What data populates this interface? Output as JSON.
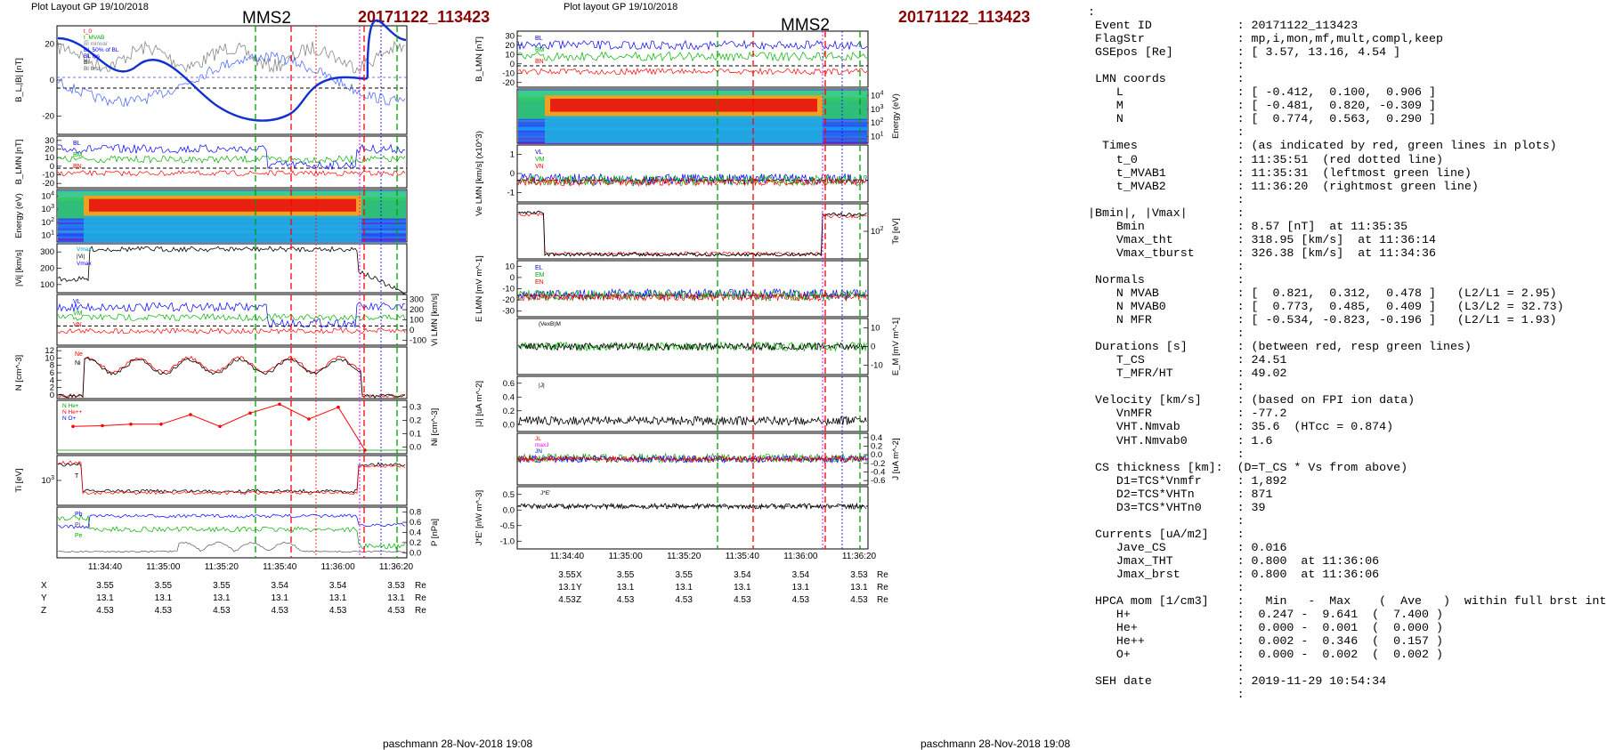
{
  "left_panel": {
    "header": "Plot Layout GP 19/10/2018",
    "spacecraft": "MMS2",
    "event": "20171122_113423",
    "footer": "paschmann 28-Nov-2018 19:08",
    "time_ticks": [
      "11:34:40",
      "11:35:00",
      "11:35:20",
      "11:35:40",
      "11:36:00",
      "11:36:20"
    ],
    "position": {
      "rows": [
        "X",
        "Y",
        "Z"
      ],
      "unit": "Re",
      "values": [
        [
          "3.55",
          "3.55",
          "3.55",
          "3.54",
          "3.54",
          "3.53"
        ],
        [
          "13.1",
          "13.1",
          "13.1",
          "13.1",
          "13.1",
          "13.1"
        ],
        [
          "4.53",
          "4.53",
          "4.53",
          "4.53",
          "4.53",
          "4.53"
        ]
      ]
    }
  },
  "right_panel": {
    "header": "Plot layout GP 19/10/2018",
    "spacecraft": "MMS2",
    "event": "20171122_113423",
    "footer": "paschmann 28-Nov-2018 19:08",
    "time_ticks": [
      "11:34:40",
      "11:35:00",
      "11:35:20",
      "11:35:40",
      "11:36:00",
      "11:36:20"
    ],
    "position": {
      "rows": [
        "X",
        "Y",
        "Z"
      ],
      "unit": "Re",
      "values": [
        [
          "3.55",
          "3.55",
          "3.55",
          "3.54",
          "3.54",
          "3.53"
        ],
        [
          "13.1",
          "13.1",
          "13.1",
          "13.1",
          "13.1",
          "13.1"
        ],
        [
          "4.53",
          "4.53",
          "4.53",
          "4.53",
          "4.53",
          "4.53"
        ]
      ]
    }
  },
  "chart_data": [
    {
      "type": "line",
      "panel": "left",
      "ylabel": "B_L,|B| [nT]",
      "yticks": [
        "20",
        "0",
        "-20"
      ],
      "legend": [
        "t_0",
        "t_MVAB",
        "Bl minvar",
        "BL 50% of BL",
        "BL fps",
        "Bl",
        "Bl brst"
      ]
    },
    {
      "type": "line",
      "panel": "left",
      "ylabel": "B_LMN [nT]",
      "yticks": [
        "30",
        "20",
        "10",
        "0",
        "-10",
        "-20"
      ],
      "series": [
        {
          "name": "BL"
        },
        {
          "name": "BM"
        },
        {
          "name": "BN"
        }
      ]
    },
    {
      "type": "heatmap",
      "panel": "left",
      "ylabel": "Energy (eV)",
      "yticks": [
        "10^4",
        "10^3",
        "10^2",
        "10^1"
      ]
    },
    {
      "type": "line",
      "panel": "left",
      "ylabel": "|Vi| [km/s]",
      "yticks": [
        "300",
        "200",
        "100"
      ],
      "legend": [
        "Vmax",
        "|Vi|",
        "Vmax"
      ]
    },
    {
      "type": "line",
      "panel": "left",
      "ylabel": "Vi LMN [km/s]",
      "yticks": [
        "300",
        "200",
        "100",
        "0",
        "-100"
      ],
      "series": [
        {
          "name": "VL"
        },
        {
          "name": "VM"
        },
        {
          "name": "VN"
        }
      ]
    },
    {
      "type": "line",
      "panel": "left",
      "ylabel": "N [cm^-3]",
      "yticks": [
        "12",
        "10",
        "8",
        "6",
        "4",
        "2",
        "0"
      ],
      "series": [
        {
          "name": "Ne"
        },
        {
          "name": "Ni"
        }
      ]
    },
    {
      "type": "line",
      "panel": "left",
      "ylabel": "Ni [cm^-3]",
      "yticks": [
        "0.3",
        "0.2",
        "0.1",
        "0.0"
      ],
      "series": [
        {
          "name": "N He+"
        },
        {
          "name": "N He++",
          "values": [
            0.16,
            0.165,
            0.175,
            0.175,
            0.24,
            0.16,
            0.25,
            0.31,
            0.21,
            0.29,
            0.0
          ]
        },
        {
          "name": "N O+"
        }
      ]
    },
    {
      "type": "line",
      "panel": "left",
      "ylabel": "Ti [eV]",
      "yticks": [
        "10^3"
      ],
      "legend": [
        "Te",
        "Ti"
      ]
    },
    {
      "type": "line",
      "panel": "left",
      "ylabel": "P [nPa]",
      "yticks": [
        "0.8",
        "0.6",
        "0.4",
        "0.2",
        "0.0"
      ],
      "legend": [
        "Pb",
        "Pi",
        "Pe"
      ]
    },
    {
      "type": "line",
      "panel": "right",
      "ylabel": "B_LMN [nT]",
      "yticks": [
        "30",
        "20",
        "10",
        "0",
        "-10",
        "-20"
      ],
      "series": [
        {
          "name": "BL"
        },
        {
          "name": "BM"
        },
        {
          "name": "BN"
        }
      ]
    },
    {
      "type": "heatmap",
      "panel": "right",
      "ylabel": "Energy (eV)",
      "yticks": [
        "10^4",
        "10^3",
        "10^2",
        "10^1"
      ]
    },
    {
      "type": "line",
      "panel": "right",
      "ylabel": "Ve LMN [km/s] (x10^3)",
      "yticks": [
        "1",
        "0",
        "-1"
      ],
      "series": [
        {
          "name": "VL"
        },
        {
          "name": "VM"
        },
        {
          "name": "VN"
        }
      ]
    },
    {
      "type": "line",
      "panel": "right",
      "ylabel": "Te [eV]",
      "yticks": [
        "10^2"
      ]
    },
    {
      "type": "line",
      "panel": "right",
      "ylabel": "E LMN [mV m^-1]",
      "yticks": [
        "10",
        "0",
        "-10",
        "-20",
        "-30"
      ],
      "series": [
        {
          "name": "EL"
        },
        {
          "name": "EM"
        },
        {
          "name": "EN"
        }
      ]
    },
    {
      "type": "line",
      "panel": "right",
      "ylabel": "E_M [mV m^-1]",
      "yticks": [
        "10",
        "0",
        "-10"
      ],
      "legend": [
        "(VexB)M"
      ]
    },
    {
      "type": "line",
      "panel": "right",
      "ylabel": "|J| [uA m^-2]",
      "yticks": [
        "0.6",
        "0.4",
        "0.2",
        "0.0"
      ],
      "legend": [
        "|J|"
      ]
    },
    {
      "type": "line",
      "panel": "right",
      "ylabel": "J [uA m^-2]",
      "yticks": [
        "0.4",
        "0.2",
        "0.0",
        "-0.2",
        "-0.4",
        "-0.6"
      ],
      "series": [
        {
          "name": "JL"
        },
        {
          "name": "JM"
        },
        {
          "name": "JN"
        }
      ],
      "legend": [
        "JL",
        "maxJ",
        "JN"
      ]
    },
    {
      "type": "line",
      "panel": "right",
      "ylabel": "J*E' [nW m^-3]",
      "yticks": [
        "0.5",
        "0.0",
        "-0.5",
        "-1.0"
      ],
      "legend": [
        "J*E'"
      ]
    }
  ],
  "info": {
    "lines": [
      ":",
      " Event ID            : 20171122_113423",
      " FlagStr             : mp,i,mon,mf,mult,compl,keep",
      " GSEpos [Re]         : [ 3.57, 13.16, 4.54 ]",
      "                     :",
      " LMN coords          :",
      "    L                : [ -0.412,  0.100,  0.906 ]",
      "    M                : [ -0.481,  0.820, -0.309 ]",
      "    N                : [  0.774,  0.563,  0.290 ]",
      "                     :",
      "  Times              : (as indicated by red, green lines in plots)",
      "    t_0              : 11:35:51  (red dotted line)",
      "    t_MVAB1          : 11:35:31  (leftmost green line)",
      "    t_MVAB2          : 11:36:20  (rightmost green line)",
      "                     :",
      "|Bmin|, |Vmax|       :",
      "    Bmin             : 8.57 [nT]  at 11:35:35",
      "    Vmax_tht         : 318.95 [km/s]  at 11:36:14",
      "    Vmax_tburst      : 326.38 [km/s]  at 11:34:36",
      "                     :",
      " Normals             :",
      "    N MVAB           : [  0.821,  0.312,  0.478 ]   (L2/L1 = 2.95)",
      "    N MVAB0          : [  0.773,  0.485,  0.409 ]   (L3/L2 = 32.73)",
      "    N MFR            : [ -0.534, -0.823, -0.196 ]   (L2/L1 = 1.93)",
      "                     :",
      " Durations [s]       : (between red, resp green lines)",
      "    T_CS             : 24.51",
      "    T_MFR/HT         : 49.02",
      "                     :",
      " Velocity [km/s]     : (based on FPI ion data)",
      "    VnMFR            : -77.2",
      "    VHT.Nmvab        : 35.6  (HTcc = 0.874)",
      "    VHT.Nmvab0       : 1.6",
      "                     :",
      " CS thickness [km]:  (D=T_CS * Vs from above)",
      "    D1=TCS*Vnmfr     : 1,892",
      "    D2=TCS*VHTn      : 871",
      "    D3=TCS*VHTn0     : 39",
      "                     :",
      " Currents [uA/m2]    :",
      "    Jave_CS          : 0.016",
      "    Jmax_THT         : 0.800  at 11:36:06",
      "    Jmax_brst        : 0.800  at 11:36:06",
      "                     :",
      " HPCA mom [1/cm3]    :   Min   -  Max    (  Ave   )  within full brst int",
      "    H+               :  0.247 -  9.641  (  7.400 )",
      "    He+              :  0.000 -  0.001  (  0.000 )",
      "    He++             :  0.002 -  0.346  (  0.157 )",
      "    O+               :  0.000 -  0.002  (  0.002 )",
      "                     :",
      " SEH date            : 2019-11-29 10:54:34",
      "                     :"
    ]
  },
  "colors": {
    "event": "#8b0000",
    "bl": "#0000ff",
    "bm": "#00c000",
    "bn": "#ff0000",
    "green_marker": "#00a000",
    "red_marker": "#ff0000"
  }
}
